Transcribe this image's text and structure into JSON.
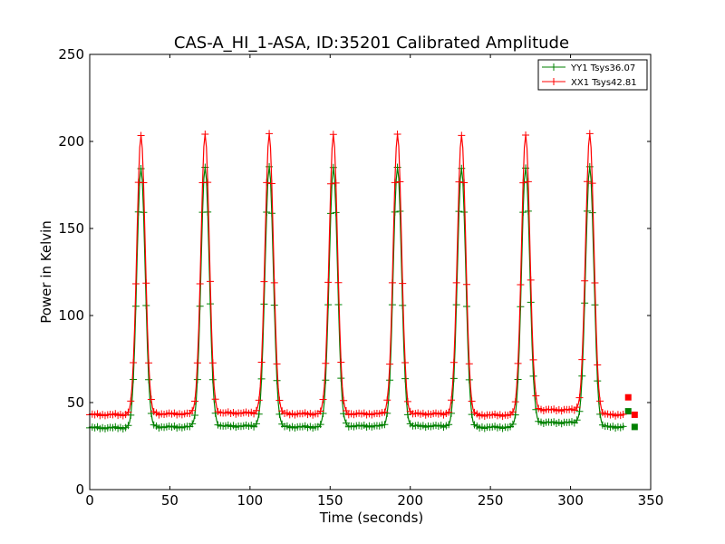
{
  "chart_data": {
    "type": "line",
    "title": "CAS-A_HI_1-ASA, ID:35201 Calibrated Amplitude",
    "xlabel": "Time (seconds)",
    "ylabel": "Power in Kelvin",
    "xlim": [
      0,
      350
    ],
    "ylim": [
      0,
      250
    ],
    "xticks": [
      0,
      50,
      100,
      150,
      200,
      250,
      300,
      350
    ],
    "yticks": [
      0,
      50,
      100,
      150,
      200,
      250
    ],
    "grid": false,
    "legend_placement": "top-right",
    "peak_times": [
      32,
      72,
      112,
      152,
      192,
      232,
      272,
      312
    ],
    "series": [
      {
        "name": "YY1 Tsys36.07",
        "color": "#008000",
        "baseline": [
          35.5,
          36.0,
          36.5,
          36.0,
          36.5,
          36.5,
          35.8,
          38.5,
          36.0
        ],
        "peak_value": 185,
        "end_points": [
          [
            336,
            45
          ],
          [
            340,
            36
          ]
        ]
      },
      {
        "name": "XX1 Tsys42.81",
        "color": "#ff0000",
        "baseline": [
          43.0,
          43.5,
          44.0,
          43.5,
          43.5,
          43.5,
          42.8,
          45.8,
          43.0
        ],
        "peak_value": 204,
        "end_points": [
          [
            336,
            53
          ],
          [
            340,
            43
          ]
        ]
      }
    ]
  }
}
